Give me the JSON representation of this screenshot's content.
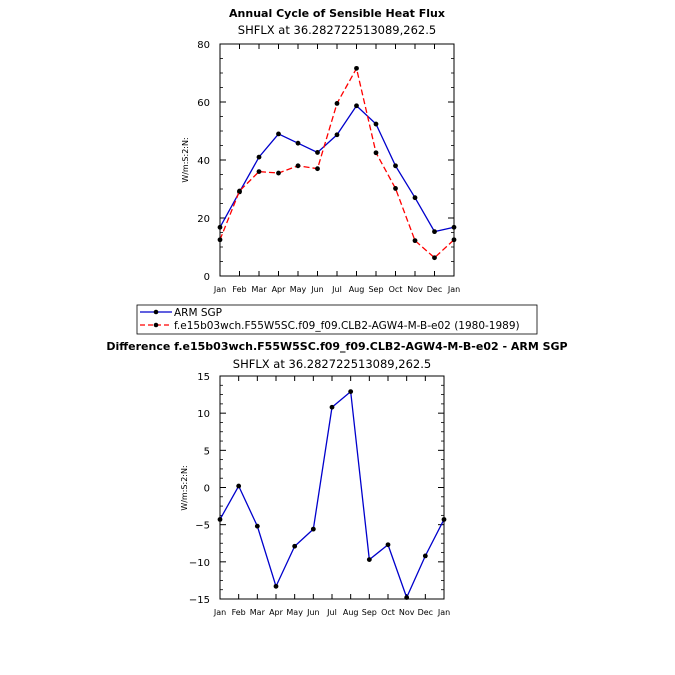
{
  "chart_data": [
    {
      "type": "line",
      "title": "Annual Cycle of Sensible Heat Flux",
      "subtitle": "SHFLX at 36.282722513089,262.5",
      "ylabel": "W/m:S:2:N:",
      "xlabel": "",
      "categories": [
        "Jan",
        "Feb",
        "Mar",
        "Apr",
        "May",
        "Jun",
        "Jul",
        "Aug",
        "Sep",
        "Oct",
        "Nov",
        "Dec",
        "Jan"
      ],
      "ylim": [
        0,
        80
      ],
      "yticks": [
        "0",
        "20",
        "40",
        "60",
        "80"
      ],
      "series": [
        {
          "name": "ARM SGP",
          "color": "#0000cc",
          "style": "solid",
          "values": [
            16.8,
            29.0,
            41.0,
            49.0,
            45.8,
            42.6,
            48.7,
            58.7,
            52.4,
            38.0,
            27.0,
            15.3,
            16.8
          ]
        },
        {
          "name": "f.e15b03wch.F55W5SC.f09_f09.CLB2-AGW4-M-B-e02 (1980-1989)",
          "color": "#ff0000",
          "style": "dashed",
          "values": [
            12.5,
            29.3,
            36.0,
            35.5,
            38.0,
            37.0,
            59.5,
            71.6,
            42.5,
            30.2,
            12.2,
            6.3,
            12.5
          ]
        }
      ],
      "legend_position": "bottom-left"
    },
    {
      "type": "line",
      "title": "Difference f.e15b03wch.F55W5SC.f09_f09.CLB2-AGW4-M-B-e02 - ARM SGP",
      "subtitle": "SHFLX at 36.282722513089,262.5",
      "ylabel": "W/m:S:2:N:",
      "xlabel": "",
      "categories": [
        "Jan",
        "Feb",
        "Mar",
        "Apr",
        "May",
        "Jun",
        "Jul",
        "Aug",
        "Sep",
        "Oct",
        "Nov",
        "Dec",
        "Jan"
      ],
      "ylim": [
        -15,
        15
      ],
      "yticks": [
        "−15",
        "−10",
        "−5",
        "0",
        "5",
        "10",
        "15"
      ],
      "series": [
        {
          "name": "Difference",
          "color": "#0000cc",
          "style": "solid",
          "values": [
            -4.3,
            0.2,
            -5.2,
            -13.3,
            -7.9,
            -5.6,
            10.8,
            12.9,
            -9.7,
            -7.7,
            -14.8,
            -9.2,
            -4.3
          ]
        }
      ]
    }
  ]
}
